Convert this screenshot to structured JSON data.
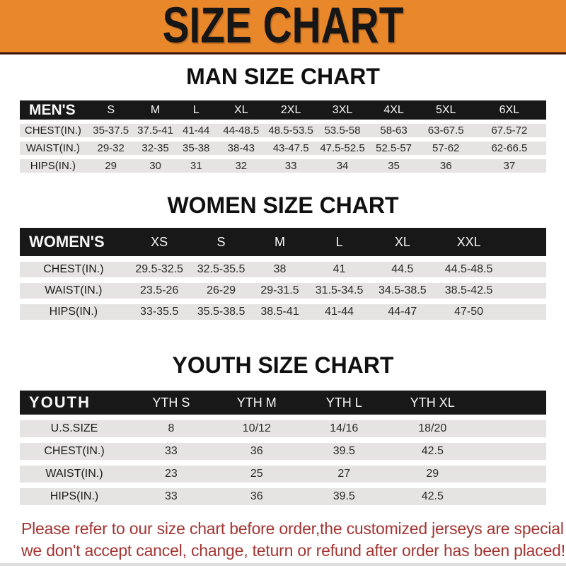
{
  "banner": {
    "title": "SIZE CHART"
  },
  "colors": {
    "banner_bg": "#E9872B",
    "banner_border": "#3A1206",
    "header_bar_bg": "#181818",
    "row_bg": "#E5E4E2",
    "notice_text": "#A33532"
  },
  "sections": {
    "men": {
      "title": "MAN SIZE CHART",
      "table": {
        "name": "MEN'S",
        "filler": false,
        "headers": [
          "S",
          "M",
          "L",
          "XL",
          "2XL",
          "3XL",
          "4XL",
          "5XL",
          "6XL"
        ],
        "rows": [
          {
            "label": "CHEST(IN.)",
            "values": [
              "35-37.5",
              "37.5-41",
              "41-44",
              "44-48.5",
              "48.5-53.5",
              "53.5-58",
              "58-63",
              "63-67.5",
              "67.5-72"
            ]
          },
          {
            "label": "WAIST(IN.)",
            "values": [
              "29-32",
              "32-35",
              "35-38",
              "38-43",
              "43-47.5",
              "47.5-52.5",
              "52.5-57",
              "57-62",
              "62-66.5"
            ]
          },
          {
            "label": "HIPS(IN.)",
            "values": [
              "29",
              "30",
              "31",
              "32",
              "33",
              "34",
              "35",
              "36",
              "37"
            ]
          }
        ]
      }
    },
    "women": {
      "title": "WOMEN SIZE CHART",
      "table": {
        "name": "WOMEN'S",
        "filler": true,
        "headers": [
          "XS",
          "S",
          "M",
          "L",
          "XL",
          "XXL"
        ],
        "rows": [
          {
            "label": "CHEST(IN.)",
            "values": [
              "29.5-32.5",
              "32.5-35.5",
              "38",
              "41",
              "44.5",
              "44.5-48.5"
            ]
          },
          {
            "label": "WAIST(IN.)",
            "values": [
              "23.5-26",
              "26-29",
              "29-31.5",
              "31.5-34.5",
              "34.5-38.5",
              "38.5-42.5"
            ]
          },
          {
            "label": "HIPS(IN.)",
            "values": [
              "33-35.5",
              "35.5-38.5",
              "38.5-41",
              "41-44",
              "44-47",
              "47-50"
            ]
          }
        ]
      }
    },
    "youth": {
      "title": "YOUTH SIZE CHART",
      "table": {
        "name": "YOUTH",
        "filler": true,
        "headers": [
          "YTH S",
          "YTH M",
          "YTH L",
          "YTH XL"
        ],
        "rows": [
          {
            "label": "U.S.SIZE",
            "values": [
              "8",
              "10/12",
              "14/16",
              "18/20"
            ]
          },
          {
            "label": "CHEST(IN.)",
            "values": [
              "33",
              "36",
              "39.5",
              "42.5"
            ]
          },
          {
            "label": "WAIST(IN.)",
            "values": [
              "23",
              "25",
              "27",
              "29"
            ]
          },
          {
            "label": "HIPS(IN.)",
            "values": [
              "33",
              "36",
              "39.5",
              "42.5"
            ]
          }
        ]
      }
    }
  },
  "footer": {
    "line1": "Please refer to our size chart before order,the customized jerseys are special products,",
    "line2": "we don't accept cancel, change, teturn or refund after order has been placed!"
  },
  "chart_data": [
    {
      "type": "table",
      "title": "MAN SIZE CHART",
      "columns": [
        "MEN'S",
        "S",
        "M",
        "L",
        "XL",
        "2XL",
        "3XL",
        "4XL",
        "5XL",
        "6XL"
      ],
      "rows": [
        [
          "CHEST(IN.)",
          "35-37.5",
          "37.5-41",
          "41-44",
          "44-48.5",
          "48.5-53.5",
          "53.5-58",
          "58-63",
          "63-67.5",
          "67.5-72"
        ],
        [
          "WAIST(IN.)",
          "29-32",
          "32-35",
          "35-38",
          "38-43",
          "43-47.5",
          "47.5-52.5",
          "52.5-57",
          "57-62",
          "62-66.5"
        ],
        [
          "HIPS(IN.)",
          "29",
          "30",
          "31",
          "32",
          "33",
          "34",
          "35",
          "36",
          "37"
        ]
      ]
    },
    {
      "type": "table",
      "title": "WOMEN SIZE CHART",
      "columns": [
        "WOMEN'S",
        "XS",
        "S",
        "M",
        "L",
        "XL",
        "XXL"
      ],
      "rows": [
        [
          "CHEST(IN.)",
          "29.5-32.5",
          "32.5-35.5",
          "38",
          "41",
          "44.5",
          "44.5-48.5"
        ],
        [
          "WAIST(IN.)",
          "23.5-26",
          "26-29",
          "29-31.5",
          "31.5-34.5",
          "34.5-38.5",
          "38.5-42.5"
        ],
        [
          "HIPS(IN.)",
          "33-35.5",
          "35.5-38.5",
          "38.5-41",
          "41-44",
          "44-47",
          "47-50"
        ]
      ]
    },
    {
      "type": "table",
      "title": "YOUTH SIZE CHART",
      "columns": [
        "YOUTH",
        "YTH S",
        "YTH M",
        "YTH L",
        "YTH XL"
      ],
      "rows": [
        [
          "U.S.SIZE",
          "8",
          "10/12",
          "14/16",
          "18/20"
        ],
        [
          "CHEST(IN.)",
          "33",
          "36",
          "39.5",
          "42.5"
        ],
        [
          "WAIST(IN.)",
          "23",
          "25",
          "27",
          "29"
        ],
        [
          "HIPS(IN.)",
          "33",
          "36",
          "39.5",
          "42.5"
        ]
      ]
    }
  ]
}
